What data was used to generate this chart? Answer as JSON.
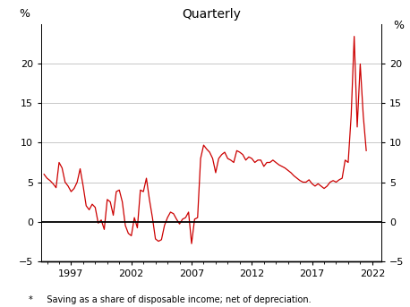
{
  "title": "Quarterly",
  "ylabel_left": "%",
  "ylabel_right": "%",
  "footnote": "*     Saving as a share of disposable income; net of depreciation.",
  "line_color": "#cc0000",
  "background_color": "#ffffff",
  "grid_color": "#b0b0b0",
  "ylim": [
    -5,
    25
  ],
  "yticks": [
    -5,
    0,
    5,
    10,
    15,
    20
  ],
  "xlim_start": 1994.5,
  "xlim_end": 2022.75,
  "xticks": [
    1997,
    2002,
    2007,
    2012,
    2017,
    2022
  ],
  "data": [
    [
      1994.75,
      6.0
    ],
    [
      1995.0,
      5.5
    ],
    [
      1995.25,
      5.2
    ],
    [
      1995.5,
      4.8
    ],
    [
      1995.75,
      4.3
    ],
    [
      1996.0,
      7.5
    ],
    [
      1996.25,
      6.8
    ],
    [
      1996.5,
      5.0
    ],
    [
      1996.75,
      4.5
    ],
    [
      1997.0,
      3.8
    ],
    [
      1997.25,
      4.2
    ],
    [
      1997.5,
      5.0
    ],
    [
      1997.75,
      6.7
    ],
    [
      1998.0,
      4.5
    ],
    [
      1998.25,
      2.0
    ],
    [
      1998.5,
      1.5
    ],
    [
      1998.75,
      2.2
    ],
    [
      1999.0,
      1.8
    ],
    [
      1999.25,
      -0.2
    ],
    [
      1999.5,
      0.2
    ],
    [
      1999.75,
      -1.0
    ],
    [
      2000.0,
      2.8
    ],
    [
      2000.25,
      2.5
    ],
    [
      2000.5,
      0.8
    ],
    [
      2000.75,
      3.8
    ],
    [
      2001.0,
      4.0
    ],
    [
      2001.25,
      2.5
    ],
    [
      2001.5,
      -0.5
    ],
    [
      2001.75,
      -1.5
    ],
    [
      2002.0,
      -1.8
    ],
    [
      2002.25,
      0.5
    ],
    [
      2002.5,
      -0.8
    ],
    [
      2002.75,
      4.0
    ],
    [
      2003.0,
      3.8
    ],
    [
      2003.25,
      5.5
    ],
    [
      2003.5,
      2.8
    ],
    [
      2003.75,
      0.5
    ],
    [
      2004.0,
      -2.2
    ],
    [
      2004.25,
      -2.5
    ],
    [
      2004.5,
      -2.3
    ],
    [
      2004.75,
      -0.5
    ],
    [
      2005.0,
      0.5
    ],
    [
      2005.25,
      1.2
    ],
    [
      2005.5,
      1.0
    ],
    [
      2005.75,
      0.3
    ],
    [
      2006.0,
      -0.3
    ],
    [
      2006.25,
      0.3
    ],
    [
      2006.5,
      0.5
    ],
    [
      2006.75,
      1.2
    ],
    [
      2007.0,
      -2.8
    ],
    [
      2007.25,
      0.3
    ],
    [
      2007.5,
      0.5
    ],
    [
      2007.75,
      8.0
    ],
    [
      2008.0,
      9.7
    ],
    [
      2008.25,
      9.2
    ],
    [
      2008.5,
      8.8
    ],
    [
      2008.75,
      8.0
    ],
    [
      2009.0,
      6.2
    ],
    [
      2009.25,
      8.0
    ],
    [
      2009.5,
      8.5
    ],
    [
      2009.75,
      8.8
    ],
    [
      2010.0,
      8.0
    ],
    [
      2010.25,
      7.8
    ],
    [
      2010.5,
      7.5
    ],
    [
      2010.75,
      9.0
    ],
    [
      2011.0,
      8.8
    ],
    [
      2011.25,
      8.5
    ],
    [
      2011.5,
      7.8
    ],
    [
      2011.75,
      8.2
    ],
    [
      2012.0,
      8.0
    ],
    [
      2012.25,
      7.5
    ],
    [
      2012.5,
      7.8
    ],
    [
      2012.75,
      7.8
    ],
    [
      2013.0,
      7.0
    ],
    [
      2013.25,
      7.5
    ],
    [
      2013.5,
      7.5
    ],
    [
      2013.75,
      7.8
    ],
    [
      2014.0,
      7.5
    ],
    [
      2014.25,
      7.2
    ],
    [
      2014.5,
      7.0
    ],
    [
      2014.75,
      6.8
    ],
    [
      2015.0,
      6.5
    ],
    [
      2015.25,
      6.2
    ],
    [
      2015.5,
      5.8
    ],
    [
      2015.75,
      5.5
    ],
    [
      2016.0,
      5.2
    ],
    [
      2016.25,
      5.0
    ],
    [
      2016.5,
      5.0
    ],
    [
      2016.75,
      5.3
    ],
    [
      2017.0,
      4.8
    ],
    [
      2017.25,
      4.5
    ],
    [
      2017.5,
      4.8
    ],
    [
      2017.75,
      4.5
    ],
    [
      2018.0,
      4.2
    ],
    [
      2018.25,
      4.5
    ],
    [
      2018.5,
      5.0
    ],
    [
      2018.75,
      5.2
    ],
    [
      2019.0,
      5.0
    ],
    [
      2019.25,
      5.3
    ],
    [
      2019.5,
      5.5
    ],
    [
      2019.75,
      7.8
    ],
    [
      2020.0,
      7.5
    ],
    [
      2020.25,
      13.5
    ],
    [
      2020.5,
      23.5
    ],
    [
      2020.75,
      12.0
    ],
    [
      2021.0,
      20.0
    ],
    [
      2021.25,
      13.5
    ],
    [
      2021.5,
      9.0
    ]
  ]
}
